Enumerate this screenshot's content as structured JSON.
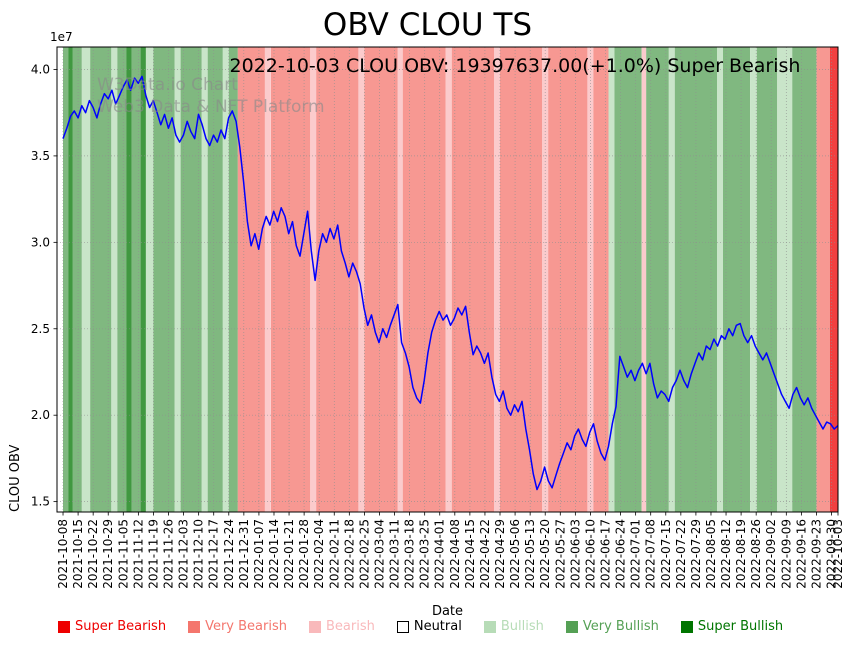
{
  "title": "OBV CLOU TS",
  "subtitle": "2022-10-03 CLOU OBV: 19397637.00(+1.0%) Super Bearish",
  "watermark": {
    "line1": "W3Data.io Chart",
    "line2": "Web3 Data & NFT Platform"
  },
  "chart_data": {
    "type": "line",
    "title": "OBV CLOU TS",
    "xlabel": "Date",
    "ylabel": "CLOU OBV",
    "y_offset_label": "1e7",
    "unit_multiplier": 10000000,
    "ylim": [
      1.44,
      4.13
    ],
    "yticks": [
      1.5,
      2.0,
      2.5,
      3.0,
      3.5,
      4.0
    ],
    "xlim_weeks": [
      -0.4,
      51.43
    ],
    "last_tick_week": 51.43,
    "grid": {
      "style": "dotted",
      "color": "#8f8f8f"
    },
    "legend_position": "bottom",
    "latest": {
      "date": "2022-10-03",
      "obv": 19397637.0,
      "change_pct": "+1.0%",
      "sentiment": "Super Bearish"
    },
    "x_tick_labels": [
      "2021-10-08",
      "2021-10-15",
      "2021-10-22",
      "2021-10-29",
      "2021-11-05",
      "2021-11-12",
      "2021-11-19",
      "2021-11-26",
      "2021-12-03",
      "2021-12-10",
      "2021-12-17",
      "2021-12-24",
      "2021-12-31",
      "2022-01-07",
      "2022-01-14",
      "2022-01-21",
      "2022-01-28",
      "2022-02-04",
      "2022-02-11",
      "2022-02-18",
      "2022-02-25",
      "2022-03-04",
      "2022-03-11",
      "2022-03-18",
      "2022-03-25",
      "2022-04-01",
      "2022-04-08",
      "2022-04-15",
      "2022-04-22",
      "2022-04-29",
      "2022-05-06",
      "2022-05-13",
      "2022-05-20",
      "2022-05-27",
      "2022-06-03",
      "2022-06-10",
      "2022-06-17",
      "2022-06-24",
      "2022-07-01",
      "2022-07-08",
      "2022-07-15",
      "2022-07-22",
      "2022-07-29",
      "2022-08-05",
      "2022-08-12",
      "2022-08-19",
      "2022-08-26",
      "2022-09-02",
      "2022-09-09",
      "2022-09-16",
      "2022-09-23",
      "2022-09-30",
      "2022-10-03"
    ],
    "series": [
      {
        "name": "CLOU OBV",
        "color": "#0000ff",
        "values_1e7": [
          3.6,
          3.66,
          3.73,
          3.76,
          3.72,
          3.79,
          3.75,
          3.82,
          3.78,
          3.72,
          3.8,
          3.86,
          3.83,
          3.88,
          3.8,
          3.85,
          3.9,
          3.94,
          3.88,
          3.95,
          3.92,
          3.96,
          3.85,
          3.78,
          3.82,
          3.75,
          3.68,
          3.74,
          3.66,
          3.72,
          3.62,
          3.58,
          3.62,
          3.7,
          3.64,
          3.6,
          3.74,
          3.68,
          3.6,
          3.56,
          3.62,
          3.58,
          3.65,
          3.6,
          3.72,
          3.76,
          3.7,
          3.55,
          3.35,
          3.12,
          2.98,
          3.05,
          2.96,
          3.08,
          3.15,
          3.1,
          3.18,
          3.12,
          3.2,
          3.15,
          3.05,
          3.12,
          2.98,
          2.92,
          3.05,
          3.18,
          2.95,
          2.78,
          2.95,
          3.05,
          3.0,
          3.08,
          3.02,
          3.1,
          2.95,
          2.88,
          2.8,
          2.88,
          2.83,
          2.76,
          2.62,
          2.52,
          2.58,
          2.48,
          2.42,
          2.5,
          2.45,
          2.52,
          2.58,
          2.64,
          2.42,
          2.36,
          2.28,
          2.16,
          2.1,
          2.07,
          2.2,
          2.36,
          2.48,
          2.55,
          2.6,
          2.55,
          2.58,
          2.52,
          2.56,
          2.62,
          2.58,
          2.63,
          2.48,
          2.35,
          2.4,
          2.36,
          2.3,
          2.36,
          2.22,
          2.12,
          2.08,
          2.14,
          2.04,
          2.0,
          2.06,
          2.02,
          2.08,
          1.92,
          1.8,
          1.66,
          1.57,
          1.62,
          1.7,
          1.62,
          1.58,
          1.65,
          1.72,
          1.78,
          1.84,
          1.8,
          1.88,
          1.92,
          1.86,
          1.82,
          1.9,
          1.95,
          1.85,
          1.78,
          1.74,
          1.82,
          1.95,
          2.05,
          2.34,
          2.28,
          2.22,
          2.26,
          2.2,
          2.26,
          2.3,
          2.24,
          2.3,
          2.18,
          2.1,
          2.14,
          2.12,
          2.08,
          2.16,
          2.2,
          2.26,
          2.2,
          2.16,
          2.24,
          2.3,
          2.36,
          2.32,
          2.4,
          2.38,
          2.44,
          2.4,
          2.46,
          2.44,
          2.5,
          2.46,
          2.52,
          2.53,
          2.46,
          2.42,
          2.46,
          2.4,
          2.36,
          2.32,
          2.36,
          2.3,
          2.24,
          2.18,
          2.12,
          2.08,
          2.04,
          2.12,
          2.16,
          2.1,
          2.06,
          2.1,
          2.04,
          2.0,
          1.96,
          1.92,
          1.96,
          1.95,
          1.92,
          1.9397637
        ]
      }
    ],
    "sentiment_levels": [
      {
        "key": "super_bearish",
        "label": "Super Bearish",
        "color": "#ee0000"
      },
      {
        "key": "very_bearish",
        "label": "Very Bearish",
        "color": "#f4766d"
      },
      {
        "key": "bearish",
        "label": "Bearish",
        "color": "#f9b9bb"
      },
      {
        "key": "neutral",
        "label": "Neutral",
        "color": "#ffffff"
      },
      {
        "key": "bullish",
        "label": "Bullish",
        "color": "#b7dcb7"
      },
      {
        "key": "very_bullish",
        "label": "Very Bullish",
        "color": "#55a055"
      },
      {
        "key": "super_bullish",
        "label": "Super Bullish",
        "color": "#007500"
      }
    ],
    "bands": [
      {
        "x0": 0.0,
        "x1": 0.35,
        "level": "very_bullish"
      },
      {
        "x0": 0.35,
        "x1": 0.65,
        "level": "super_bullish"
      },
      {
        "x0": 0.65,
        "x1": 1.25,
        "level": "very_bullish"
      },
      {
        "x0": 1.25,
        "x1": 1.8,
        "level": "bullish"
      },
      {
        "x0": 1.8,
        "x1": 3.2,
        "level": "very_bullish"
      },
      {
        "x0": 3.2,
        "x1": 3.6,
        "level": "bullish"
      },
      {
        "x0": 3.6,
        "x1": 4.2,
        "level": "very_bullish"
      },
      {
        "x0": 4.2,
        "x1": 4.55,
        "level": "super_bullish"
      },
      {
        "x0": 4.55,
        "x1": 5.15,
        "level": "very_bullish"
      },
      {
        "x0": 5.15,
        "x1": 5.5,
        "level": "super_bullish"
      },
      {
        "x0": 5.5,
        "x1": 6.0,
        "level": "bullish"
      },
      {
        "x0": 6.0,
        "x1": 7.4,
        "level": "very_bullish"
      },
      {
        "x0": 7.4,
        "x1": 7.8,
        "level": "bullish"
      },
      {
        "x0": 7.8,
        "x1": 9.2,
        "level": "very_bullish"
      },
      {
        "x0": 9.2,
        "x1": 9.6,
        "level": "bullish"
      },
      {
        "x0": 9.6,
        "x1": 10.6,
        "level": "very_bullish"
      },
      {
        "x0": 10.6,
        "x1": 11.0,
        "level": "bullish"
      },
      {
        "x0": 11.0,
        "x1": 11.6,
        "level": "very_bullish"
      },
      {
        "x0": 11.6,
        "x1": 13.4,
        "level": "very_bearish"
      },
      {
        "x0": 13.4,
        "x1": 13.8,
        "level": "bearish"
      },
      {
        "x0": 13.8,
        "x1": 16.4,
        "level": "very_bearish"
      },
      {
        "x0": 16.4,
        "x1": 16.8,
        "level": "bearish"
      },
      {
        "x0": 16.8,
        "x1": 19.6,
        "level": "very_bearish"
      },
      {
        "x0": 19.6,
        "x1": 20.0,
        "level": "bearish"
      },
      {
        "x0": 20.0,
        "x1": 22.2,
        "level": "very_bearish"
      },
      {
        "x0": 22.2,
        "x1": 22.55,
        "level": "bearish"
      },
      {
        "x0": 22.55,
        "x1": 25.4,
        "level": "very_bearish"
      },
      {
        "x0": 25.4,
        "x1": 25.8,
        "level": "bearish"
      },
      {
        "x0": 25.8,
        "x1": 28.6,
        "level": "very_bearish"
      },
      {
        "x0": 28.6,
        "x1": 29.0,
        "level": "bearish"
      },
      {
        "x0": 29.0,
        "x1": 31.8,
        "level": "very_bearish"
      },
      {
        "x0": 31.8,
        "x1": 32.2,
        "level": "bearish"
      },
      {
        "x0": 32.2,
        "x1": 34.8,
        "level": "very_bearish"
      },
      {
        "x0": 34.8,
        "x1": 35.2,
        "level": "bearish"
      },
      {
        "x0": 35.2,
        "x1": 36.2,
        "level": "very_bearish"
      },
      {
        "x0": 36.2,
        "x1": 36.6,
        "level": "bullish"
      },
      {
        "x0": 36.6,
        "x1": 38.4,
        "level": "very_bullish"
      },
      {
        "x0": 38.4,
        "x1": 38.7,
        "level": "bearish"
      },
      {
        "x0": 38.7,
        "x1": 40.2,
        "level": "very_bullish"
      },
      {
        "x0": 40.2,
        "x1": 40.6,
        "level": "bullish"
      },
      {
        "x0": 40.6,
        "x1": 43.4,
        "level": "very_bullish"
      },
      {
        "x0": 43.4,
        "x1": 43.8,
        "level": "bullish"
      },
      {
        "x0": 43.8,
        "x1": 45.6,
        "level": "very_bullish"
      },
      {
        "x0": 45.6,
        "x1": 46.05,
        "level": "bullish"
      },
      {
        "x0": 46.05,
        "x1": 47.4,
        "level": "very_bullish"
      },
      {
        "x0": 47.4,
        "x1": 48.4,
        "level": "bullish"
      },
      {
        "x0": 48.4,
        "x1": 50.0,
        "level": "very_bullish"
      },
      {
        "x0": 50.0,
        "x1": 50.9,
        "level": "very_bearish"
      },
      {
        "x0": 50.9,
        "x1": 51.43,
        "level": "super_bearish"
      }
    ]
  }
}
